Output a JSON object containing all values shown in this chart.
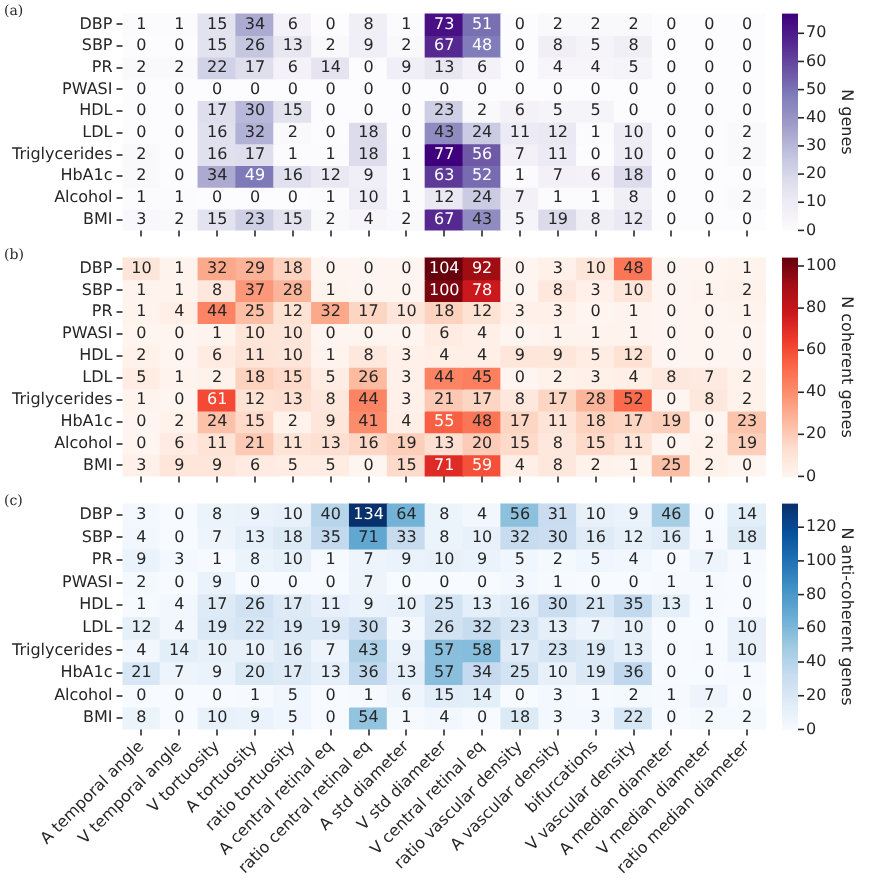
{
  "chart_data": [
    {
      "type": "heatmap",
      "title": "(a)",
      "clabel": "N genes",
      "tick_labels": "y",
      "data_labels": true,
      "colors": [
        "#fcfbfd",
        "#efedf5",
        "#dadaeb",
        "#bcbddc",
        "#9e9ac8",
        "#807dba",
        "#6a51a3",
        "#54278f",
        "#3f007d"
      ],
      "categories": [
        null,
        null,
        null,
        null,
        null,
        null,
        null,
        null,
        null,
        null,
        null,
        null,
        null,
        null,
        null,
        null,
        null
      ],
      "y_categories": [
        "DBP",
        "SBP",
        "PR",
        "PWASI",
        "HDL",
        "LDL",
        "Triglycerides",
        "HbA1c",
        "Alcohol",
        "BMI"
      ],
      "clim": [
        0,
        77
      ],
      "cticks": [
        0,
        10,
        20,
        30,
        40,
        50,
        60,
        70
      ],
      "cells": [
        [
          1,
          1,
          15,
          34,
          6,
          0,
          8,
          1,
          73,
          51,
          0,
          2,
          2,
          2,
          0,
          0,
          0
        ],
        [
          0,
          0,
          15,
          26,
          13,
          2,
          9,
          2,
          67,
          48,
          0,
          8,
          5,
          8,
          0,
          0,
          0
        ],
        [
          2,
          2,
          22,
          17,
          6,
          14,
          0,
          9,
          13,
          6,
          0,
          4,
          4,
          5,
          0,
          0,
          0
        ],
        [
          0,
          0,
          0,
          0,
          0,
          0,
          0,
          0,
          0,
          0,
          0,
          0,
          0,
          0,
          0,
          0,
          0
        ],
        [
          0,
          0,
          17,
          30,
          15,
          0,
          0,
          0,
          23,
          2,
          6,
          5,
          5,
          0,
          0,
          0,
          0
        ],
        [
          0,
          0,
          16,
          32,
          2,
          0,
          18,
          0,
          43,
          24,
          11,
          12,
          1,
          10,
          0,
          0,
          2
        ],
        [
          2,
          0,
          16,
          17,
          1,
          1,
          18,
          1,
          77,
          56,
          7,
          11,
          0,
          10,
          0,
          0,
          2
        ],
        [
          2,
          0,
          34,
          49,
          16,
          12,
          9,
          1,
          63,
          52,
          1,
          7,
          6,
          18,
          0,
          0,
          0
        ],
        [
          1,
          1,
          0,
          0,
          0,
          1,
          10,
          1,
          12,
          24,
          7,
          1,
          1,
          8,
          0,
          0,
          2
        ],
        [
          3,
          2,
          15,
          23,
          15,
          2,
          4,
          2,
          67,
          43,
          5,
          19,
          8,
          12,
          0,
          0,
          0
        ]
      ]
    },
    {
      "type": "heatmap",
      "title": "(b)",
      "clabel": "N coherent genes",
      "tick_labels": "y",
      "data_labels": true,
      "colors": [
        "#fff5f0",
        "#fee0d2",
        "#fcbba1",
        "#fc9272",
        "#fb6a4a",
        "#ef3b2c",
        "#cb181d",
        "#a50f15",
        "#67000d"
      ],
      "categories": [
        null,
        null,
        null,
        null,
        null,
        null,
        null,
        null,
        null,
        null,
        null,
        null,
        null,
        null,
        null,
        null,
        null
      ],
      "y_categories": [
        "DBP",
        "SBP",
        "PR",
        "PWASI",
        "HDL",
        "LDL",
        "Triglycerides",
        "HbA1c",
        "Alcohol",
        "BMI"
      ],
      "clim": [
        0,
        104
      ],
      "cticks": [
        0,
        20,
        40,
        60,
        80,
        100
      ],
      "cells": [
        [
          10,
          1,
          32,
          29,
          18,
          0,
          0,
          0,
          104,
          92,
          0,
          3,
          10,
          48,
          0,
          0,
          1
        ],
        [
          1,
          1,
          8,
          37,
          28,
          1,
          0,
          0,
          100,
          78,
          0,
          8,
          3,
          10,
          0,
          1,
          2
        ],
        [
          1,
          4,
          44,
          25,
          12,
          32,
          17,
          10,
          18,
          12,
          3,
          3,
          0,
          1,
          0,
          0,
          1
        ],
        [
          0,
          0,
          1,
          10,
          10,
          0,
          0,
          0,
          6,
          4,
          0,
          1,
          1,
          1,
          0,
          0,
          0
        ],
        [
          2,
          0,
          6,
          11,
          10,
          1,
          8,
          3,
          4,
          4,
          9,
          9,
          5,
          12,
          0,
          0,
          0
        ],
        [
          5,
          1,
          2,
          18,
          15,
          5,
          26,
          3,
          44,
          45,
          0,
          2,
          3,
          4,
          8,
          7,
          2
        ],
        [
          1,
          0,
          61,
          12,
          13,
          8,
          44,
          3,
          21,
          17,
          8,
          17,
          28,
          52,
          0,
          8,
          2
        ],
        [
          0,
          2,
          24,
          15,
          2,
          9,
          41,
          4,
          55,
          48,
          17,
          11,
          18,
          17,
          19,
          0,
          23
        ],
        [
          0,
          6,
          11,
          21,
          11,
          13,
          16,
          19,
          13,
          20,
          15,
          8,
          15,
          11,
          0,
          2,
          19
        ],
        [
          3,
          9,
          9,
          6,
          5,
          5,
          0,
          15,
          71,
          59,
          4,
          8,
          2,
          1,
          25,
          2,
          0
        ]
      ]
    },
    {
      "type": "heatmap",
      "title": "(c)",
      "clabel": "N anti-coherent genes",
      "data_labels": true,
      "colors": [
        "#f7fbff",
        "#deebf7",
        "#c6dbef",
        "#9ecae1",
        "#6baed6",
        "#4292c6",
        "#2171b5",
        "#08519c",
        "#08306b"
      ],
      "categories": [
        "A temporal angle",
        "V temporal angle",
        "V tortuosity",
        "A tortuosity",
        "ratio tortuosity",
        "A central retinal eq",
        "ratio central retinal eq",
        "A std diameter",
        "V std diameter",
        "V central retinal eq",
        "ratio vascular density",
        "A vascular density",
        "bifurcations",
        "V vascular density",
        "A median diameter",
        "V median diameter",
        "ratio median diameter"
      ],
      "y_categories": [
        "DBP",
        "SBP",
        "PR",
        "PWASI",
        "HDL",
        "LDL",
        "Triglycerides",
        "HbA1c",
        "Alcohol",
        "BMI"
      ],
      "clim": [
        0,
        134
      ],
      "cticks": [
        0,
        20,
        40,
        60,
        80,
        100,
        120
      ],
      "cells": [
        [
          3,
          0,
          8,
          9,
          10,
          40,
          134,
          64,
          8,
          4,
          56,
          31,
          10,
          9,
          46,
          0,
          14
        ],
        [
          4,
          0,
          7,
          13,
          18,
          35,
          71,
          33,
          8,
          10,
          32,
          30,
          16,
          12,
          16,
          1,
          18
        ],
        [
          9,
          3,
          1,
          8,
          10,
          1,
          7,
          9,
          10,
          9,
          5,
          2,
          5,
          4,
          0,
          7,
          1
        ],
        [
          2,
          0,
          9,
          0,
          0,
          0,
          7,
          0,
          0,
          0,
          3,
          1,
          0,
          0,
          1,
          1,
          0
        ],
        [
          1,
          4,
          17,
          26,
          17,
          11,
          9,
          10,
          25,
          13,
          16,
          30,
          21,
          35,
          13,
          1,
          0
        ],
        [
          12,
          4,
          19,
          22,
          19,
          19,
          30,
          3,
          26,
          32,
          23,
          13,
          7,
          10,
          0,
          0,
          10
        ],
        [
          4,
          14,
          10,
          10,
          16,
          7,
          43,
          9,
          57,
          58,
          17,
          23,
          19,
          13,
          0,
          1,
          10
        ],
        [
          21,
          7,
          9,
          20,
          17,
          13,
          36,
          13,
          57,
          34,
          25,
          10,
          19,
          36,
          0,
          0,
          1
        ],
        [
          0,
          0,
          0,
          1,
          5,
          0,
          1,
          6,
          15,
          14,
          0,
          3,
          1,
          2,
          1,
          7,
          0
        ],
        [
          8,
          0,
          10,
          9,
          5,
          0,
          54,
          1,
          4,
          0,
          18,
          3,
          3,
          22,
          0,
          2,
          2
        ]
      ]
    }
  ]
}
